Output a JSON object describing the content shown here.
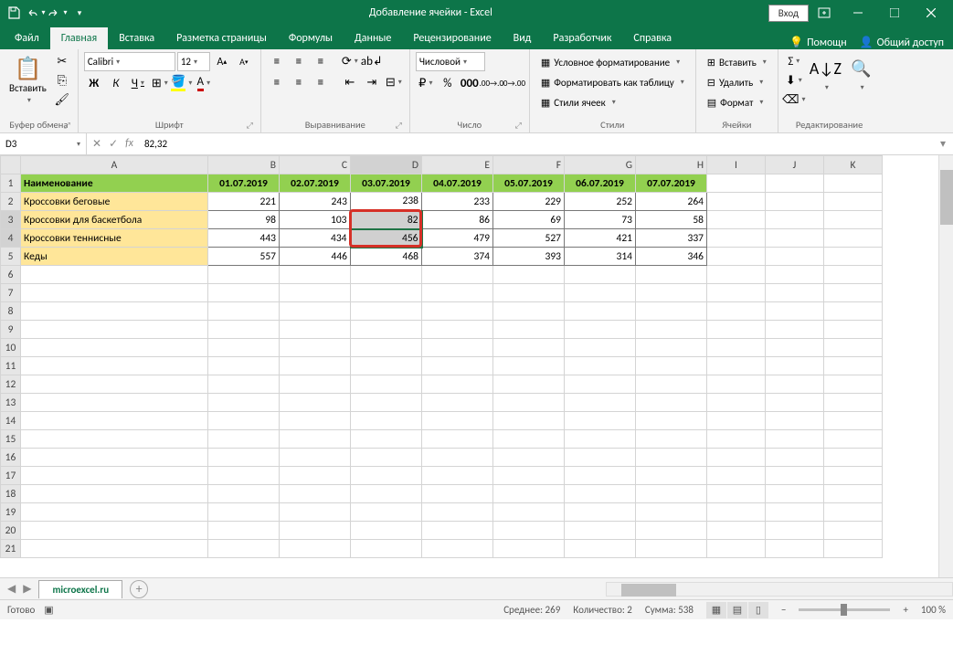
{
  "title": "Добавление ячейки  -  Excel",
  "login_label": "Вход",
  "tabs": {
    "file": "Файл",
    "home": "Главная",
    "insert": "Вставка",
    "layout": "Разметка страницы",
    "formulas": "Формулы",
    "data": "Данные",
    "review": "Рецензирование",
    "view": "Вид",
    "developer": "Разработчик",
    "help": "Справка",
    "tell_me": "Помощн",
    "share": "Общий доступ"
  },
  "ribbon": {
    "clipboard": {
      "paste": "Вставить",
      "label": "Буфер обмена"
    },
    "font": {
      "name": "Calibri",
      "size": "12",
      "bold": "Ж",
      "italic": "К",
      "underline": "Ч",
      "label": "Шрифт"
    },
    "alignment": {
      "label": "Выравнивание"
    },
    "number": {
      "format": "Числовой",
      "label": "Число"
    },
    "styles": {
      "conditional": "Условное форматирование",
      "table": "Форматировать как таблицу",
      "cell": "Стили ячеек",
      "label": "Стили"
    },
    "cells": {
      "insert": "Вставить",
      "delete": "Удалить",
      "format": "Формат",
      "label": "Ячейки"
    },
    "editing": {
      "label": "Редактирование"
    }
  },
  "name_box": "D3",
  "formula": "82,32",
  "columns": [
    "A",
    "B",
    "C",
    "D",
    "E",
    "F",
    "G",
    "H",
    "I",
    "J",
    "K"
  ],
  "header_row": [
    "Наименование",
    "01.07.2019",
    "02.07.2019",
    "03.07.2019",
    "04.07.2019",
    "05.07.2019",
    "06.07.2019",
    "07.07.2019"
  ],
  "data_rows": [
    {
      "name": "Кроссовки беговые",
      "vals": [
        221,
        243,
        238,
        233,
        229,
        252,
        264
      ]
    },
    {
      "name": "Кроссовки для баскетбола",
      "vals": [
        98,
        103,
        82,
        86,
        69,
        73,
        58
      ]
    },
    {
      "name": "Кроссовки теннисные",
      "vals": [
        443,
        434,
        456,
        479,
        527,
        421,
        337
      ]
    },
    {
      "name": "Кеды",
      "vals": [
        557,
        446,
        468,
        374,
        393,
        314,
        346
      ]
    }
  ],
  "selected_col": "D",
  "selected_rows": [
    3,
    4
  ],
  "red_box_rows": [
    3,
    4
  ],
  "sheet_name": "microexcel.ru",
  "status": {
    "ready": "Готово",
    "avg": "Среднее: 269",
    "count": "Количество: 2",
    "sum": "Сумма: 538",
    "zoom": "100 %"
  },
  "colors": {
    "brand": "#0d7549",
    "header_green": "#92d050",
    "row_yellow": "#ffe699",
    "red_outline": "#d63027"
  }
}
